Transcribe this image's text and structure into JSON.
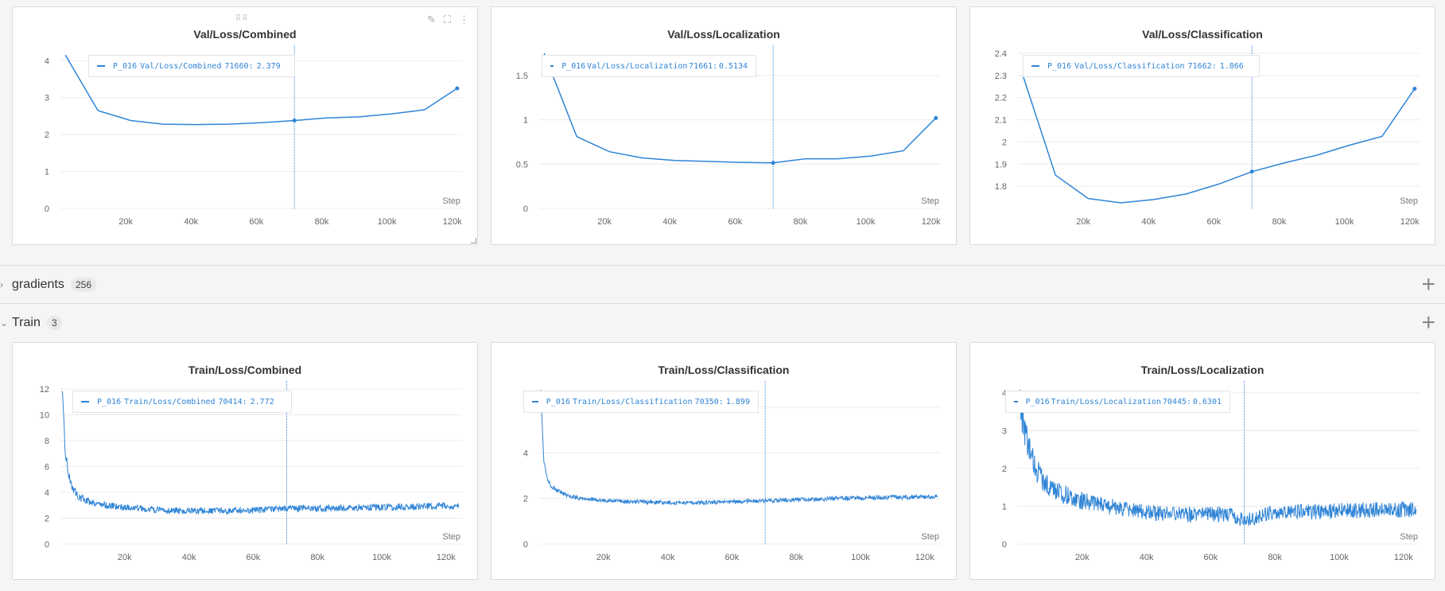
{
  "colors": {
    "series": "#2f84d6",
    "grid": "#ececec",
    "axis": "#666666",
    "panel_bg": "#ffffff",
    "page_bg": "#f5f5f5"
  },
  "icons": {
    "edit": "pencil-icon",
    "fullscreen": "expand-icon",
    "more": "more-vertical-icon",
    "drag": "drag-handle-icon",
    "expand": "chevron-right-icon",
    "collapse": "chevron-down-icon",
    "add": "plus-icon"
  },
  "sections": [
    {
      "title": "gradients",
      "count": "256",
      "expanded": false
    },
    {
      "title": "Train",
      "count": "3",
      "expanded": true
    }
  ],
  "panels": [
    {
      "title": "Val/Loss/Combined",
      "legend": {
        "run": "P_016",
        "metric": "Val/Loss/Combined",
        "step": "71660:",
        "value": "2.379"
      },
      "chart_data": {
        "type": "line",
        "title": "Val/Loss/Combined",
        "xlabel": "Step",
        "xlim": [
          0,
          123000
        ],
        "ylim": [
          0,
          4.2
        ],
        "xticks": [
          20000,
          40000,
          60000,
          80000,
          100000,
          120000
        ],
        "xtick_labels": [
          "20k",
          "40k",
          "60k",
          "80k",
          "100k",
          "120k"
        ],
        "yticks": [
          0,
          1,
          2,
          3,
          4
        ],
        "ytick_labels": [
          "0",
          "1",
          "2",
          "3",
          "4"
        ],
        "hover_x": 71660,
        "hover_y": 2.379,
        "end_marker": true,
        "series": [
          {
            "name": "P_016",
            "x": [
              1500,
              11500,
              21500,
              31500,
              41500,
              51500,
              61500,
              71660,
              81500,
              91500,
              101500,
              111500,
              121500
            ],
            "y": [
              4.15,
              2.65,
              2.38,
              2.28,
              2.27,
              2.28,
              2.32,
              2.379,
              2.45,
              2.48,
              2.56,
              2.67,
              3.25
            ]
          }
        ]
      }
    },
    {
      "title": "Val/Loss/Localization",
      "legend": {
        "run": "P_016",
        "metric": "Val/Loss/Localization",
        "step": "71661:",
        "value": "0.5134"
      },
      "chart_data": {
        "type": "line",
        "title": "Val/Loss/Localization",
        "xlabel": "Step",
        "xlim": [
          0,
          123000
        ],
        "ylim": [
          0,
          1.75
        ],
        "xticks": [
          20000,
          40000,
          60000,
          80000,
          100000,
          120000
        ],
        "xtick_labels": [
          "20k",
          "40k",
          "60k",
          "80k",
          "100k",
          "120k"
        ],
        "yticks": [
          0,
          0.5,
          1,
          1.5
        ],
        "ytick_labels": [
          "0",
          "0.5",
          "1",
          "1.5"
        ],
        "hover_x": 71661,
        "hover_y": 0.5134,
        "end_marker": true,
        "series": [
          {
            "name": "P_016",
            "x": [
              1500,
              11500,
              21500,
              31500,
              41500,
              51500,
              61500,
              71661,
              81500,
              91500,
              101500,
              111500,
              121500
            ],
            "y": [
              1.75,
              0.81,
              0.64,
              0.57,
              0.54,
              0.53,
              0.52,
              0.5134,
              0.56,
              0.56,
              0.59,
              0.65,
              1.02
            ]
          }
        ]
      }
    },
    {
      "title": "Val/Loss/Classification",
      "legend": {
        "run": "P_016",
        "metric": "Val/Loss/Classification",
        "step": "71662:",
        "value": "1.866"
      },
      "chart_data": {
        "type": "line",
        "title": "Val/Loss/Classification",
        "xlabel": "Step",
        "xlim": [
          0,
          123000
        ],
        "ylim": [
          1.7,
          2.4
        ],
        "xticks": [
          20000,
          40000,
          60000,
          80000,
          100000,
          120000
        ],
        "xtick_labels": [
          "20k",
          "40k",
          "60k",
          "80k",
          "100k",
          "120k"
        ],
        "yticks": [
          1.8,
          1.9,
          2,
          2.1,
          2.2,
          2.3,
          2.4
        ],
        "ytick_labels": [
          "1.8",
          "1.9",
          "2",
          "2.1",
          "2.2",
          "2.3",
          "2.4"
        ],
        "hover_x": 71662,
        "hover_y": 1.866,
        "end_marker": true,
        "series": [
          {
            "name": "P_016",
            "x": [
              1500,
              11500,
              21500,
              31500,
              41500,
              51500,
              61500,
              71662,
              81500,
              91500,
              101500,
              111500,
              121500
            ],
            "y": [
              2.3,
              1.85,
              1.745,
              1.725,
              1.74,
              1.765,
              1.81,
              1.866,
              1.905,
              1.94,
              1.985,
              2.025,
              2.24
            ]
          }
        ]
      }
    },
    {
      "title": "Train/Loss/Combined",
      "legend": {
        "run": "P_016",
        "metric": "Train/Loss/Combined",
        "step": "70414:",
        "value": "2.772"
      },
      "chart_data": {
        "type": "line",
        "title": "Train/Loss/Combined",
        "xlabel": "Step",
        "xlim": [
          0,
          125000
        ],
        "ylim": [
          0,
          12
        ],
        "xticks": [
          20000,
          40000,
          60000,
          80000,
          100000,
          120000
        ],
        "xtick_labels": [
          "20k",
          "40k",
          "60k",
          "80k",
          "100k",
          "120k"
        ],
        "yticks": [
          0,
          2,
          4,
          6,
          8,
          10,
          12
        ],
        "ytick_labels": [
          "0",
          "2",
          "4",
          "6",
          "8",
          "10",
          "12"
        ],
        "hover_x": 70414,
        "hover_y": 2.772,
        "end_marker": false,
        "series": [
          {
            "name": "P_016",
            "x": [
              500,
              1000,
              1500,
              2500,
              4000,
              6000,
              9000,
              14000,
              20000,
              30000,
              40000,
              50000,
              60000,
              70414,
              80000,
              90000,
              100000,
              110000,
              124000
            ],
            "y": [
              12,
              9.5,
              7.2,
              5.4,
              4.2,
              3.6,
              3.3,
              3.0,
              2.85,
              2.65,
              2.55,
              2.55,
              2.6,
              2.772,
              2.75,
              2.8,
              2.85,
              2.9,
              2.95
            ]
          }
        ]
      }
    },
    {
      "title": "Train/Loss/Classification",
      "legend": {
        "run": "P_016",
        "metric": "Train/Loss/Classification",
        "step": "70350:",
        "value": "1.899"
      },
      "chart_data": {
        "type": "line",
        "title": "Train/Loss/Classification",
        "xlabel": "Step",
        "xlim": [
          0,
          125000
        ],
        "ylim": [
          0,
          6.8
        ],
        "xticks": [
          20000,
          40000,
          60000,
          80000,
          100000,
          120000
        ],
        "xtick_labels": [
          "20k",
          "40k",
          "60k",
          "80k",
          "100k",
          "120k"
        ],
        "yticks": [
          0,
          2,
          4,
          6
        ],
        "ytick_labels": [
          "0",
          "2",
          "4",
          "6"
        ],
        "hover_x": 70350,
        "hover_y": 1.899,
        "end_marker": false,
        "series": [
          {
            "name": "P_016",
            "x": [
              500,
              1000,
              1500,
              2500,
              4000,
              6000,
              9000,
              14000,
              20000,
              30000,
              40000,
              50000,
              60000,
              70350,
              80000,
              90000,
              100000,
              110000,
              124000
            ],
            "y": [
              6.8,
              5.0,
              3.6,
              2.9,
              2.5,
              2.3,
              2.1,
              2.0,
              1.9,
              1.85,
              1.82,
              1.82,
              1.85,
              1.899,
              1.95,
              1.98,
              2.02,
              2.05,
              2.08
            ]
          }
        ]
      }
    },
    {
      "title": "Train/Loss/Localization",
      "legend": {
        "run": "P_016",
        "metric": "Train/Loss/Localization",
        "step": "70445:",
        "value": "0.6301"
      },
      "chart_data": {
        "type": "line",
        "title": "Train/Loss/Localization",
        "xlabel": "Step",
        "xlim": [
          0,
          125000
        ],
        "ylim": [
          0,
          4.1
        ],
        "xticks": [
          20000,
          40000,
          60000,
          80000,
          100000,
          120000
        ],
        "xtick_labels": [
          "20k",
          "40k",
          "60k",
          "80k",
          "100k",
          "120k"
        ],
        "yticks": [
          0,
          1,
          2,
          3,
          4
        ],
        "ytick_labels": [
          "0",
          "1",
          "2",
          "3",
          "4"
        ],
        "hover_x": 70445,
        "hover_y": 0.6301,
        "end_marker": false,
        "series": [
          {
            "name": "P_016",
            "x": [
              500,
              1000,
              2000,
              3500,
              5500,
              8000,
              12000,
              18000,
              25000,
              35000,
              45000,
              55000,
              65000,
              70445,
              80000,
              90000,
              100000,
              110000,
              124000
            ],
            "y": [
              4.0,
              3.6,
              3.0,
              2.5,
              2.0,
              1.65,
              1.4,
              1.2,
              1.05,
              0.9,
              0.8,
              0.78,
              0.8,
              0.6301,
              0.85,
              0.85,
              0.88,
              0.9,
              0.92
            ]
          }
        ]
      }
    }
  ]
}
